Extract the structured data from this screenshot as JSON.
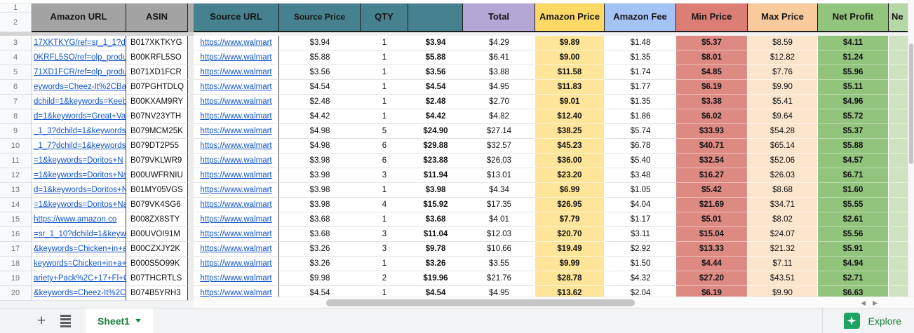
{
  "grid": {
    "header_row_numbers": [
      "1",
      "2"
    ],
    "headers": {
      "amazon_url": "Amazon URL",
      "asin": "ASIN",
      "source_url": "Source URL",
      "source_price": "Source Price",
      "qty": "QTY",
      "subtotal": "",
      "total": "Total",
      "amazon_price": "Amazon Price",
      "amazon_fee": "Amazon Fee",
      "min_price": "Min Price",
      "max_price": "Max Price",
      "net_profit": "Net Profit",
      "next_column_partial": "Ne"
    },
    "rows": [
      {
        "row_num": "3",
        "amazon_url": "17XKTKYG/ref=sr_1_1?dc",
        "asin": "B017XKTKYG",
        "source_url": "https://www.walmart",
        "source_price": "$3.94",
        "qty": "1",
        "subtotal": "$3.94",
        "total": "$4.29",
        "amazon_price": "$9.89",
        "amazon_fee": "$1.48",
        "min_price": "$5.37",
        "max_price": "$8.59",
        "net_profit": "$4.11"
      },
      {
        "row_num": "4",
        "amazon_url": "0KRFL5SO/ref=olp_produ",
        "asin": "B00KRFL5SO",
        "source_url": "https://www.walmart",
        "source_price": "$5.88",
        "qty": "1",
        "subtotal": "$5.88",
        "total": "$6.41",
        "amazon_price": "$9.00",
        "amazon_fee": "$1.35",
        "min_price": "$8.01",
        "max_price": "$12.82",
        "net_profit": "$1.24"
      },
      {
        "row_num": "5",
        "amazon_url": "71XD1FCR/ref=olp_produ",
        "asin": "B071XD1FCR",
        "source_url": "https://www.walmart",
        "source_price": "$3.56",
        "qty": "1",
        "subtotal": "$3.56",
        "total": "$3.88",
        "amazon_price": "$11.58",
        "amazon_fee": "$1.74",
        "min_price": "$4.85",
        "max_price": "$7.76",
        "net_profit": "$5.96"
      },
      {
        "row_num": "6",
        "amazon_url": "eywords=Cheez-It%2CBak",
        "asin": "B07PGHTDLQ",
        "source_url": "https://www.walmart",
        "source_price": "$4.54",
        "qty": "1",
        "subtotal": "$4.54",
        "total": "$4.95",
        "amazon_price": "$11.83",
        "amazon_fee": "$1.77",
        "min_price": "$6.19",
        "max_price": "$9.90",
        "net_profit": "$5.11"
      },
      {
        "row_num": "7",
        "amazon_url": "dchild=1&keywords=Keeb",
        "asin": "B00KXAM9RY",
        "source_url": "https://www.walmart",
        "source_price": "$2.48",
        "qty": "1",
        "subtotal": "$2.48",
        "total": "$2.70",
        "amazon_price": "$9.01",
        "amazon_fee": "$1.35",
        "min_price": "$3.38",
        "max_price": "$5.41",
        "net_profit": "$4.96"
      },
      {
        "row_num": "8",
        "amazon_url": "d=1&keywords=Great+Va",
        "asin": "B07NV23YTH",
        "source_url": "https://www.walmart",
        "source_price": "$4.42",
        "qty": "1",
        "subtotal": "$4.42",
        "total": "$4.82",
        "amazon_price": "$12.40",
        "amazon_fee": "$1.86",
        "min_price": "$6.02",
        "max_price": "$9.64",
        "net_profit": "$5.72"
      },
      {
        "row_num": "9",
        "amazon_url": "_1_3?dchild=1&keywords",
        "asin": "B079MCM25K",
        "source_url": "https://www.walmart",
        "source_price": "$4.98",
        "qty": "5",
        "subtotal": "$24.90",
        "total": "$27.14",
        "amazon_price": "$38.25",
        "amazon_fee": "$5.74",
        "min_price": "$33.93",
        "max_price": "$54.28",
        "net_profit": "$5.37"
      },
      {
        "row_num": "10",
        "amazon_url": "_1_7?dchild=1&keywords:",
        "asin": "B079DT2P55",
        "source_url": "https://www.walmart",
        "source_price": "$4.98",
        "qty": "6",
        "subtotal": "$29.88",
        "total": "$32.57",
        "amazon_price": "$45.23",
        "amazon_fee": "$6.78",
        "min_price": "$40.71",
        "max_price": "$65.14",
        "net_profit": "$5.88"
      },
      {
        "row_num": "11",
        "amazon_url": "=1&keywords=Doritos+N",
        "asin": "B079VKLWR9",
        "source_url": "https://www.walmart",
        "source_price": "$3.98",
        "qty": "6",
        "subtotal": "$23.88",
        "total": "$26.03",
        "amazon_price": "$36.00",
        "amazon_fee": "$5.40",
        "min_price": "$32.54",
        "max_price": "$52.06",
        "net_profit": "$4.57"
      },
      {
        "row_num": "12",
        "amazon_url": "=1&keywords=Doritos+Na",
        "asin": "B00UWFRNIU",
        "source_url": "https://www.walmart",
        "source_price": "$3.98",
        "qty": "3",
        "subtotal": "$11.94",
        "total": "$13.01",
        "amazon_price": "$23.20",
        "amazon_fee": "$3.48",
        "min_price": "$16.27",
        "max_price": "$26.03",
        "net_profit": "$6.71"
      },
      {
        "row_num": "13",
        "amazon_url": "d=1&keywords=Doritos+N",
        "asin": "B01MY05VGS",
        "source_url": "https://www.walmart",
        "source_price": "$3.98",
        "qty": "1",
        "subtotal": "$3.98",
        "total": "$4.34",
        "amazon_price": "$6.99",
        "amazon_fee": "$1.05",
        "min_price": "$5.42",
        "max_price": "$8.68",
        "net_profit": "$1.60"
      },
      {
        "row_num": "14",
        "amazon_url": "=1&keywords=Doritos+Na",
        "asin": "B079VK4SG6",
        "source_url": "https://www.walmart",
        "source_price": "$3.98",
        "qty": "4",
        "subtotal": "$15.92",
        "total": "$17.35",
        "amazon_price": "$26.95",
        "amazon_fee": "$4.04",
        "min_price": "$21.69",
        "max_price": "$34.71",
        "net_profit": "$5.55"
      },
      {
        "row_num": "15",
        "amazon_url": "https://www.amazon.co",
        "asin": "B008ZX8STY",
        "source_url": "https://www.walmart",
        "source_price": "$3.68",
        "qty": "1",
        "subtotal": "$3.68",
        "total": "$4.01",
        "amazon_price": "$7.79",
        "amazon_fee": "$1.17",
        "min_price": "$5.01",
        "max_price": "$8.02",
        "net_profit": "$2.61"
      },
      {
        "row_num": "16",
        "amazon_url": "=sr_1_10?dchild=1&keyw",
        "asin": "B00UVOI91M",
        "source_url": "https://www.walmart",
        "source_price": "$3.68",
        "qty": "3",
        "subtotal": "$11.04",
        "total": "$12.03",
        "amazon_price": "$20.70",
        "amazon_fee": "$3.11",
        "min_price": "$15.04",
        "max_price": "$24.07",
        "net_profit": "$5.56"
      },
      {
        "row_num": "17",
        "amazon_url": "&keywords=Chicken+in+a",
        "asin": "B00CZXJY2K",
        "source_url": "https://www.walmart",
        "source_price": "$3.26",
        "qty": "3",
        "subtotal": "$9.78",
        "total": "$10.66",
        "amazon_price": "$19.49",
        "amazon_fee": "$2.92",
        "min_price": "$13.33",
        "max_price": "$21.32",
        "net_profit": "$5.91"
      },
      {
        "row_num": "18",
        "amazon_url": "keywords=Chicken+in+a+E",
        "asin": "B000S5O99K",
        "source_url": "https://www.walmart",
        "source_price": "$3.26",
        "qty": "1",
        "subtotal": "$3.26",
        "total": "$3.55",
        "amazon_price": "$9.99",
        "amazon_fee": "$1.50",
        "min_price": "$4.44",
        "max_price": "$7.11",
        "net_profit": "$4.94"
      },
      {
        "row_num": "19",
        "amazon_url": "ariety+Pack%2C+17+Fl+O",
        "asin": "B07THCRTLS",
        "source_url": "https://www.walmart",
        "source_price": "$9.98",
        "qty": "2",
        "subtotal": "$19.96",
        "total": "$21.76",
        "amazon_price": "$28.78",
        "amazon_fee": "$4.32",
        "min_price": "$27.20",
        "max_price": "$43.51",
        "net_profit": "$2.71"
      },
      {
        "row_num": "20",
        "amazon_url": "&keywords=Cheez-It%2C+",
        "asin": "B074B5YRH3",
        "source_url": "https://www.walmart",
        "source_price": "$4.54",
        "qty": "1",
        "subtotal": "$4.54",
        "total": "$4.95",
        "amazon_price": "$13.62",
        "amazon_fee": "$2.04",
        "min_price": "$6.19",
        "max_price": "$9.90",
        "net_profit": "$6.63"
      }
    ]
  },
  "colors": {
    "header_gray": "#a3a3a3",
    "header_teal": "#45818e",
    "header_purple": "#b4a7d6",
    "header_yellow": "#ffd966",
    "cell_yellow": "#ffe599",
    "header_blue": "#a4c2f4",
    "header_red": "#dd7e76",
    "cell_red": "#dd8a83",
    "header_peach": "#f9cb9c",
    "cell_peach": "#fce5cd",
    "header_green": "#93c47d",
    "header_light_green": "#b6d7a8",
    "cell_light_green": "#cfe3c0",
    "link_blue": "#1155cc",
    "google_green": "#188038"
  },
  "bottom_bar": {
    "sheet_tab_label": "Sheet1",
    "explore_label": "Explore"
  }
}
